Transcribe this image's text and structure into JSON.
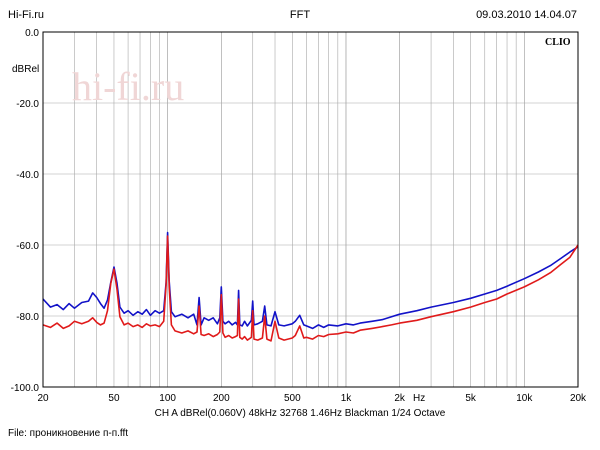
{
  "header": {
    "left": "Hi-Fi.ru",
    "center": "FFT",
    "right": "09.03.2010 14.04.07"
  },
  "watermark": "hi-fi.ru",
  "brand": "CLIO",
  "footer": {
    "params": "CH A   dBRel(0.060V)   48kHz   32768   1.46Hz   Blackman   1/24 Octave",
    "file": "File: проникновение п-п.fft"
  },
  "chart_data": {
    "type": "line",
    "title": "FFT",
    "xlabel": "Hz",
    "ylabel": "dBRel",
    "x_scale": "log",
    "xlim": [
      20,
      20000
    ],
    "ylim": [
      -100,
      0
    ],
    "grid": true,
    "x_ticks": [
      {
        "value": 20,
        "label": "20"
      },
      {
        "value": 50,
        "label": "50"
      },
      {
        "value": 100,
        "label": "100"
      },
      {
        "value": 200,
        "label": "200"
      },
      {
        "value": 500,
        "label": "500"
      },
      {
        "value": 1000,
        "label": "1k"
      },
      {
        "value": 2000,
        "label": "2k"
      },
      {
        "value": 5000,
        "label": "5k"
      },
      {
        "value": 10000,
        "label": "10k"
      },
      {
        "value": 20000,
        "label": "20k"
      }
    ],
    "y_ticks": [
      {
        "value": 0,
        "label": "0.0"
      },
      {
        "value": -20,
        "label": "-20.0"
      },
      {
        "value": -40,
        "label": "-40.0"
      },
      {
        "value": -60,
        "label": "-60.0"
      },
      {
        "value": -80,
        "label": "-80.0"
      },
      {
        "value": -100,
        "label": "-100.0"
      }
    ],
    "series": [
      {
        "color": "#1212c8",
        "points": [
          [
            20,
            -75.2
          ],
          [
            22,
            -77.5
          ],
          [
            24,
            -76.8
          ],
          [
            26,
            -78.2
          ],
          [
            28,
            -76.5
          ],
          [
            30,
            -77.8
          ],
          [
            33,
            -76.2
          ],
          [
            36,
            -75.8
          ],
          [
            38,
            -73.5
          ],
          [
            40,
            -74.8
          ],
          [
            42,
            -76.5
          ],
          [
            44,
            -77.8
          ],
          [
            46,
            -75.5
          ],
          [
            48,
            -70.5
          ],
          [
            50,
            -66.2
          ],
          [
            52,
            -70.8
          ],
          [
            54,
            -77.5
          ],
          [
            57,
            -79.2
          ],
          [
            60,
            -78.5
          ],
          [
            64,
            -79.8
          ],
          [
            68,
            -78.8
          ],
          [
            72,
            -79.5
          ],
          [
            76,
            -78.2
          ],
          [
            80,
            -79.8
          ],
          [
            85,
            -78.5
          ],
          [
            90,
            -79.2
          ],
          [
            95,
            -78.5
          ],
          [
            98,
            -70.5
          ],
          [
            100,
            -56.5
          ],
          [
            102,
            -70.2
          ],
          [
            105,
            -78.8
          ],
          [
            110,
            -80.2
          ],
          [
            120,
            -79.5
          ],
          [
            130,
            -80.5
          ],
          [
            140,
            -79.5
          ],
          [
            146,
            -82.5
          ],
          [
            150,
            -74.8
          ],
          [
            154,
            -82.5
          ],
          [
            160,
            -80.5
          ],
          [
            170,
            -81.2
          ],
          [
            180,
            -80.5
          ],
          [
            190,
            -82.2
          ],
          [
            196,
            -80.5
          ],
          [
            200,
            -71.8
          ],
          [
            204,
            -81.5
          ],
          [
            210,
            -82.2
          ],
          [
            220,
            -81.5
          ],
          [
            230,
            -82.5
          ],
          [
            240,
            -81.8
          ],
          [
            246,
            -82.5
          ],
          [
            250,
            -72.8
          ],
          [
            254,
            -82.5
          ],
          [
            262,
            -82.8
          ],
          [
            270,
            -81.5
          ],
          [
            280,
            -82.8
          ],
          [
            295,
            -81.2
          ],
          [
            300,
            -75.8
          ],
          [
            305,
            -82.5
          ],
          [
            320,
            -82.2
          ],
          [
            340,
            -81.5
          ],
          [
            350,
            -77.2
          ],
          [
            360,
            -82.5
          ],
          [
            380,
            -82.8
          ],
          [
            400,
            -78.8
          ],
          [
            420,
            -82.5
          ],
          [
            450,
            -82.8
          ],
          [
            500,
            -82.2
          ],
          [
            520,
            -81.5
          ],
          [
            550,
            -79.8
          ],
          [
            580,
            -82.5
          ],
          [
            600,
            -82.8
          ],
          [
            650,
            -83.5
          ],
          [
            700,
            -82.5
          ],
          [
            750,
            -83.2
          ],
          [
            800,
            -82.5
          ],
          [
            900,
            -82.8
          ],
          [
            1000,
            -82.2
          ],
          [
            1100,
            -82.5
          ],
          [
            1200,
            -82.0
          ],
          [
            1400,
            -81.5
          ],
          [
            1600,
            -81.0
          ],
          [
            1800,
            -80.2
          ],
          [
            2000,
            -79.5
          ],
          [
            2500,
            -78.5
          ],
          [
            3000,
            -77.5
          ],
          [
            4000,
            -76.2
          ],
          [
            5000,
            -75.0
          ],
          [
            6000,
            -73.8
          ],
          [
            7000,
            -72.8
          ],
          [
            8000,
            -71.6
          ],
          [
            10000,
            -69.5
          ],
          [
            12000,
            -67.6
          ],
          [
            14000,
            -65.8
          ],
          [
            16000,
            -63.8
          ],
          [
            18000,
            -62.0
          ],
          [
            20000,
            -60.5
          ]
        ]
      },
      {
        "color": "#e01a1a",
        "points": [
          [
            20,
            -82.5
          ],
          [
            22,
            -83.2
          ],
          [
            24,
            -82.0
          ],
          [
            26,
            -83.5
          ],
          [
            28,
            -82.8
          ],
          [
            30,
            -81.5
          ],
          [
            33,
            -82.2
          ],
          [
            36,
            -81.5
          ],
          [
            38,
            -80.5
          ],
          [
            40,
            -81.8
          ],
          [
            42,
            -82.5
          ],
          [
            44,
            -82.0
          ],
          [
            46,
            -78.5
          ],
          [
            48,
            -70.8
          ],
          [
            50,
            -66.8
          ],
          [
            52,
            -72.5
          ],
          [
            54,
            -80.2
          ],
          [
            57,
            -82.5
          ],
          [
            60,
            -82.0
          ],
          [
            64,
            -83.0
          ],
          [
            68,
            -82.5
          ],
          [
            72,
            -83.2
          ],
          [
            76,
            -82.2
          ],
          [
            80,
            -82.8
          ],
          [
            85,
            -82.5
          ],
          [
            90,
            -83.0
          ],
          [
            95,
            -81.5
          ],
          [
            98,
            -71.2
          ],
          [
            100,
            -57.5
          ],
          [
            102,
            -71.8
          ],
          [
            105,
            -82.5
          ],
          [
            110,
            -84.2
          ],
          [
            120,
            -84.8
          ],
          [
            130,
            -84.2
          ],
          [
            140,
            -85.0
          ],
          [
            146,
            -84.5
          ],
          [
            150,
            -77.2
          ],
          [
            154,
            -85.2
          ],
          [
            160,
            -85.5
          ],
          [
            170,
            -85.0
          ],
          [
            180,
            -85.8
          ],
          [
            190,
            -85.2
          ],
          [
            196,
            -84.5
          ],
          [
            200,
            -74.0
          ],
          [
            204,
            -84.8
          ],
          [
            210,
            -86.0
          ],
          [
            220,
            -85.5
          ],
          [
            230,
            -86.2
          ],
          [
            240,
            -85.8
          ],
          [
            246,
            -85.5
          ],
          [
            250,
            -75.2
          ],
          [
            254,
            -86.0
          ],
          [
            262,
            -86.5
          ],
          [
            270,
            -85.8
          ],
          [
            280,
            -86.8
          ],
          [
            295,
            -86.0
          ],
          [
            300,
            -78.5
          ],
          [
            305,
            -86.5
          ],
          [
            320,
            -86.8
          ],
          [
            340,
            -86.2
          ],
          [
            350,
            -80.0
          ],
          [
            360,
            -86.5
          ],
          [
            380,
            -87.0
          ],
          [
            400,
            -81.5
          ],
          [
            420,
            -86.2
          ],
          [
            450,
            -86.8
          ],
          [
            500,
            -86.2
          ],
          [
            520,
            -85.5
          ],
          [
            550,
            -82.8
          ],
          [
            580,
            -86.2
          ],
          [
            600,
            -86.0
          ],
          [
            650,
            -86.5
          ],
          [
            700,
            -85.5
          ],
          [
            750,
            -85.8
          ],
          [
            800,
            -85.2
          ],
          [
            900,
            -85.0
          ],
          [
            1000,
            -84.5
          ],
          [
            1100,
            -84.8
          ],
          [
            1200,
            -84.0
          ],
          [
            1400,
            -83.5
          ],
          [
            1600,
            -83.0
          ],
          [
            1800,
            -82.5
          ],
          [
            2000,
            -82.0
          ],
          [
            2500,
            -81.2
          ],
          [
            3000,
            -80.2
          ],
          [
            4000,
            -78.8
          ],
          [
            5000,
            -77.5
          ],
          [
            6000,
            -76.2
          ],
          [
            7000,
            -75.2
          ],
          [
            8000,
            -73.8
          ],
          [
            10000,
            -71.8
          ],
          [
            12000,
            -69.8
          ],
          [
            14000,
            -67.8
          ],
          [
            16000,
            -65.5
          ],
          [
            18000,
            -63.5
          ],
          [
            20000,
            -60.0
          ]
        ]
      }
    ]
  }
}
